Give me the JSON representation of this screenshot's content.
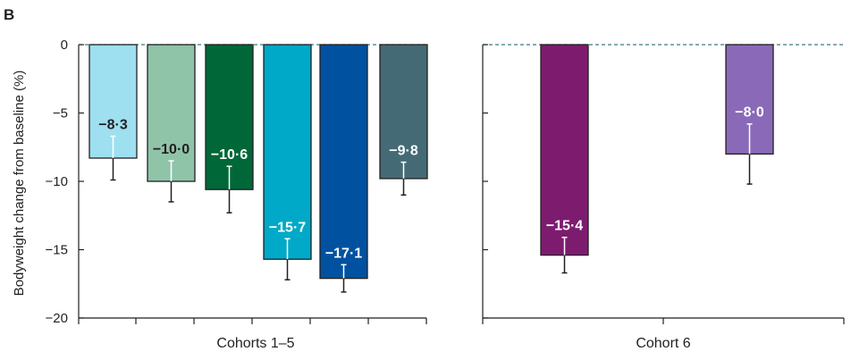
{
  "panel_label": "B",
  "chart_data": {
    "type": "bar",
    "title": "",
    "ylabel": "Bodyweight change from baseline (%)",
    "ylim": [
      -20,
      0
    ],
    "yticks": [
      0,
      -5,
      -10,
      -15,
      -20
    ],
    "ytick_labels": [
      "0",
      "−5",
      "−10",
      "−15",
      "−20"
    ],
    "groups": [
      {
        "label": "Cohorts 1–5",
        "bars": [
          {
            "value": -8.3,
            "error": 1.6,
            "label": "−8·3",
            "color": "#9edff0",
            "label_color": "#231f20",
            "error_color_inner": "#ffffff",
            "error_color_outer": "#231f20"
          },
          {
            "value": -10.0,
            "error": 1.5,
            "label": "−10·0",
            "color": "#8fc4a9",
            "label_color": "#231f20",
            "error_color_inner": "#ffffff",
            "error_color_outer": "#231f20"
          },
          {
            "value": -10.6,
            "error": 1.7,
            "label": "−10·6",
            "color": "#006838",
            "label_color": "#ffffff",
            "error_color_inner": "#ffffff",
            "error_color_outer": "#231f20"
          },
          {
            "value": -15.7,
            "error": 1.5,
            "label": "−15·7",
            "color": "#00a9c8",
            "label_color": "#ffffff",
            "error_color_inner": "#ffffff",
            "error_color_outer": "#231f20"
          },
          {
            "value": -17.1,
            "error": 1.0,
            "label": "−17·1",
            "color": "#0052a0",
            "label_color": "#ffffff",
            "error_color_inner": "#ffffff",
            "error_color_outer": "#231f20"
          },
          {
            "value": -9.8,
            "error": 1.2,
            "label": "−9·8",
            "color": "#446a75",
            "label_color": "#ffffff",
            "error_color_inner": "#ffffff",
            "error_color_outer": "#231f20"
          }
        ]
      },
      {
        "label": "Cohort 6",
        "bars": [
          {
            "value": -15.4,
            "error": 1.3,
            "label": "−15·4",
            "color": "#7d1c6f",
            "label_color": "#ffffff",
            "error_color_inner": "#ffffff",
            "error_color_outer": "#231f20"
          },
          {
            "value": -8.0,
            "error": 2.2,
            "label": "−8·0",
            "color": "#8a6ab8",
            "label_color": "#ffffff",
            "error_color_inner": "#ffffff",
            "error_color_outer": "#231f20"
          }
        ]
      }
    ],
    "zero_line": "dashed"
  }
}
